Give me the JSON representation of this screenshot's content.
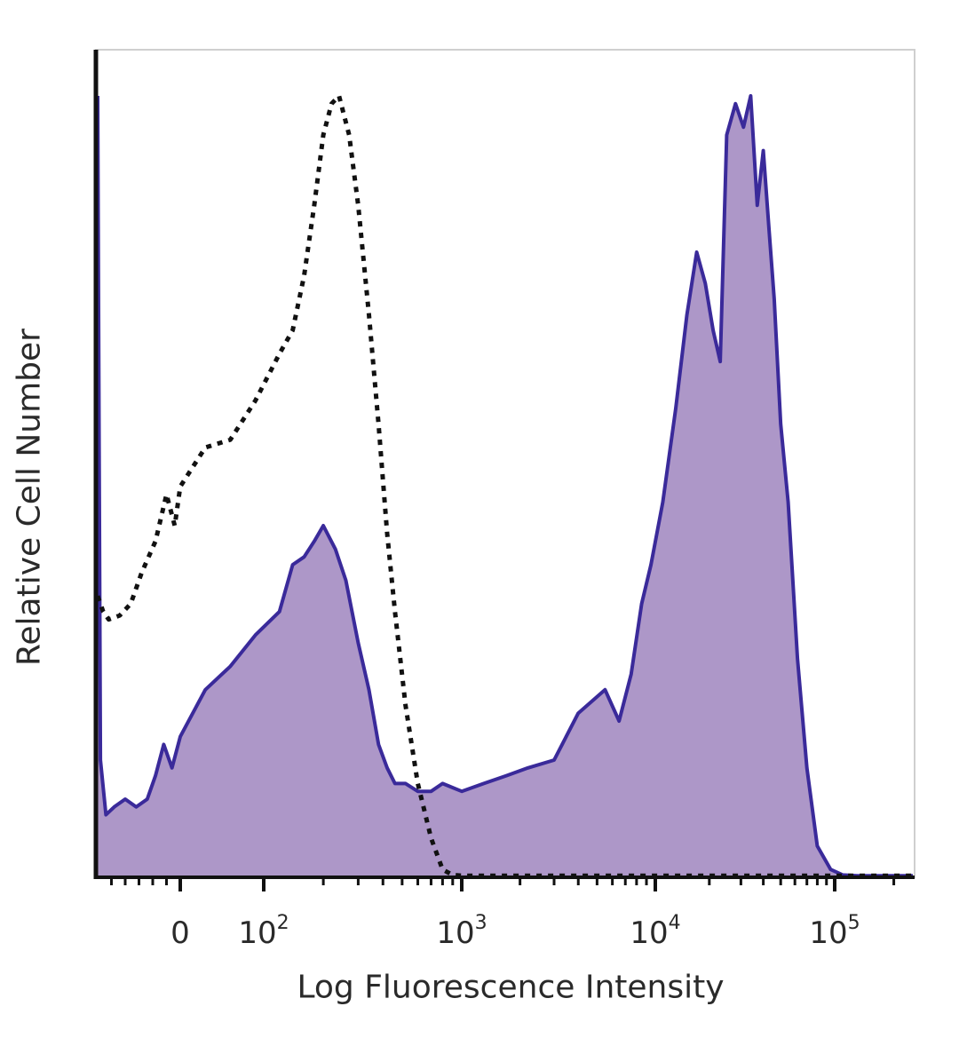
{
  "chart_data": {
    "type": "area",
    "title": "",
    "xlabel": "Log Fluorescence Intensity",
    "ylabel": "Relative Cell Number",
    "x_scale": "biexponential",
    "xlim": [
      -600,
      250000
    ],
    "ylim": [
      0,
      100
    ],
    "grid": false,
    "x_ticks": [
      {
        "value": 0,
        "base": "0",
        "exp": ""
      },
      {
        "value": 100,
        "base": "10",
        "exp": "2"
      },
      {
        "value": 1000,
        "base": "10",
        "exp": "3"
      },
      {
        "value": 10000,
        "base": "10",
        "exp": "4"
      },
      {
        "value": 100000,
        "base": "10",
        "exp": "5"
      }
    ],
    "series": [
      {
        "style": "dotted-outline",
        "color": "#111111",
        "x": [
          -600,
          -560,
          -520,
          -440,
          -360,
          -280,
          -180,
          -100,
          -40,
          0,
          30,
          60,
          90,
          120,
          140,
          160,
          180,
          200,
          220,
          240,
          270,
          300,
          340,
          380,
          420,
          460,
          520,
          600,
          700,
          800,
          900,
          1000,
          1500,
          3000,
          10000,
          50000,
          250000
        ],
        "y": [
          36,
          34,
          33,
          33.5,
          35,
          39,
          43,
          49,
          45,
          50,
          55,
          56,
          61,
          67,
          70,
          77,
          86,
          95,
          99,
          100,
          95,
          86,
          72,
          58,
          44,
          34,
          22,
          12,
          5,
          1,
          0.3,
          0.2,
          0.2,
          0.2,
          0.2,
          0.2,
          0.2
        ]
      },
      {
        "style": "filled",
        "color": "#3a2a9a",
        "fill": "#ad97c8",
        "x": [
          -600,
          -580,
          -540,
          -480,
          -400,
          -320,
          -240,
          -180,
          -120,
          -60,
          0,
          30,
          60,
          90,
          120,
          140,
          160,
          180,
          200,
          230,
          260,
          300,
          340,
          380,
          420,
          460,
          520,
          600,
          700,
          800,
          1000,
          1300,
          1700,
          2200,
          3000,
          4000,
          5500,
          6500,
          7500,
          8500,
          9500,
          11000,
          13000,
          15000,
          17000,
          19000,
          21000,
          23000,
          25000,
          28000,
          31000,
          34000,
          37000,
          40000,
          43000,
          46000,
          50000,
          55000,
          62000,
          70000,
          80000,
          95000,
          110000,
          130000,
          160000,
          200000,
          250000
        ],
        "y": [
          100,
          15,
          8,
          9,
          10,
          9,
          10,
          13,
          17,
          14,
          18,
          24,
          27,
          31,
          34,
          40,
          41,
          43,
          45,
          42,
          38,
          30,
          24,
          17,
          14,
          12,
          12,
          11,
          11,
          12,
          11,
          12,
          13,
          14,
          15,
          21,
          24,
          20,
          26,
          35,
          40,
          48,
          60,
          72,
          80,
          76,
          70,
          66,
          95,
          99,
          96,
          100,
          86,
          93,
          83,
          74,
          58,
          48,
          28,
          14,
          4,
          1,
          0.3,
          0.2,
          0.2,
          0.2,
          0.2
        ]
      }
    ]
  }
}
